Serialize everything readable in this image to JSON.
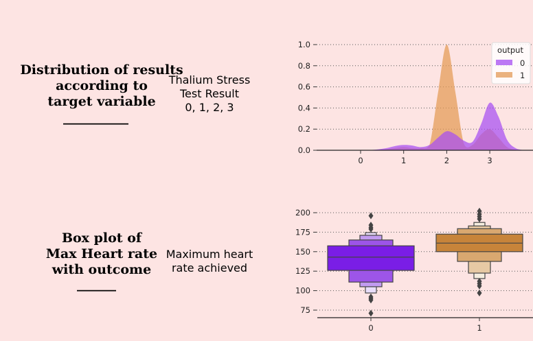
{
  "background": "#fde4e3",
  "panels": [
    {
      "title": "Distribution of results\naccording to\ntarget variable",
      "underline": "__________",
      "subtitle": "Thalium Stress\nTest Result\n0, 1, 2, 3"
    },
    {
      "title": "Box plot of\nMax Heart rate\nwith outcome",
      "underline": "______",
      "subtitle": "Maximum heart\nrate achieved"
    }
  ],
  "chart_data": [
    {
      "type": "area",
      "xlim": [
        -1,
        4
      ],
      "ylim": [
        0,
        1.0
      ],
      "xticks": [
        "0",
        "1",
        "2",
        "3"
      ],
      "yticks": [
        "0.0",
        "0.2",
        "0.4",
        "0.6",
        "0.8",
        "1.0"
      ],
      "grid": "horizontal dotted",
      "legend": {
        "title": "output",
        "placement": "top-right"
      },
      "x": [
        -0.4,
        -0.2,
        0,
        0.2,
        0.4,
        0.6,
        0.8,
        1.0,
        1.2,
        1.4,
        1.6,
        1.8,
        2.0,
        2.2,
        2.4,
        2.6,
        2.8,
        3.0,
        3.2,
        3.4,
        3.6,
        3.8
      ],
      "series": [
        {
          "name": "1",
          "color": "#e39a55",
          "values": [
            0,
            0,
            0,
            0,
            0.003,
            0.01,
            0.02,
            0.03,
            0.02,
            0.02,
            0.05,
            0.55,
            1.0,
            0.55,
            0.06,
            0.05,
            0.15,
            0.2,
            0.12,
            0.03,
            0.005,
            0
          ]
        },
        {
          "name": "0",
          "color": "#a64df2",
          "values": [
            0,
            0,
            0.003,
            0.002,
            0.008,
            0.02,
            0.04,
            0.05,
            0.045,
            0.03,
            0.05,
            0.12,
            0.18,
            0.15,
            0.09,
            0.08,
            0.25,
            0.45,
            0.32,
            0.1,
            0.02,
            0
          ]
        }
      ]
    },
    {
      "type": "boxen",
      "categories": [
        "0",
        "1"
      ],
      "ylim": [
        65,
        210
      ],
      "yticks": [
        "75",
        "100",
        "125",
        "150",
        "175",
        "200"
      ],
      "grid": "horizontal dotted",
      "groups": [
        {
          "name": "0",
          "median": 143,
          "levels": [
            [
              126,
              157.5
            ],
            [
              111,
              165
            ],
            [
              105,
              171
            ],
            [
              97,
              174.5
            ]
          ],
          "colors": [
            "#7a1ee6",
            "#9d55e8",
            "#c29cf0",
            "#e9defa"
          ],
          "outliers": [
            196,
            184,
            181,
            179,
            92,
            90,
            88,
            71
          ]
        },
        {
          "name": "1",
          "median": 161,
          "levels": [
            [
              150,
              172.5
            ],
            [
              137.5,
              179.5
            ],
            [
              122.5,
              183
            ],
            [
              115.5,
              187.5
            ]
          ],
          "colors": [
            "#c7843a",
            "#d9a870",
            "#e7c9a4",
            "#f5eddf"
          ],
          "outliers": [
            202,
            198,
            195,
            192,
            112,
            109,
            106,
            97
          ]
        }
      ]
    }
  ]
}
